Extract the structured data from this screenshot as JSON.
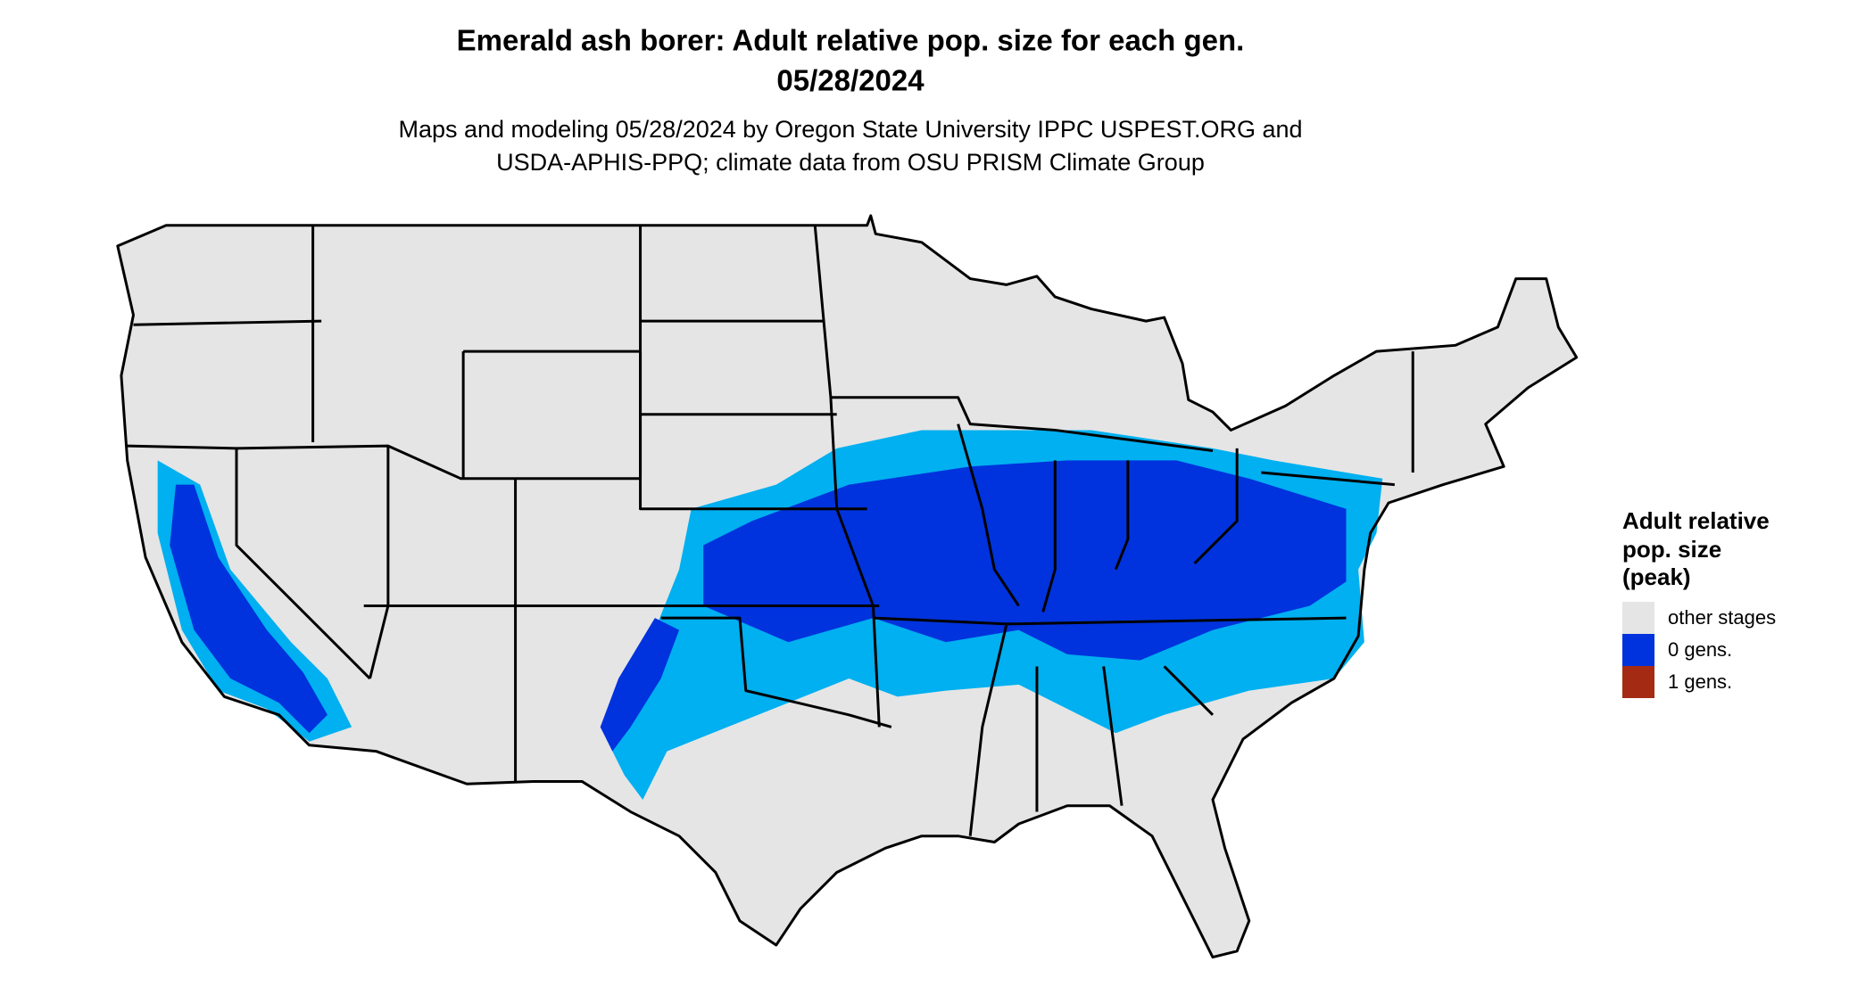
{
  "title": "Emerald ash borer: Adult relative pop. size for each gen.",
  "date": "05/28/2024",
  "subtitle": [
    "Maps and modeling 05/28/2024 by Oregon State University IPPC USPEST.ORG and",
    "USDA-APHIS-PPQ; climate data from OSU PRISM Climate Group"
  ],
  "legend": {
    "title": [
      "Adult relative",
      "pop. size",
      "(peak)"
    ],
    "items": [
      {
        "label": "other stages",
        "color": "#e5e5e5"
      },
      {
        "label": "0 gens.",
        "color": "#0033dd"
      },
      {
        "label": "1 gens.",
        "color": "#a52a14"
      }
    ]
  }
}
